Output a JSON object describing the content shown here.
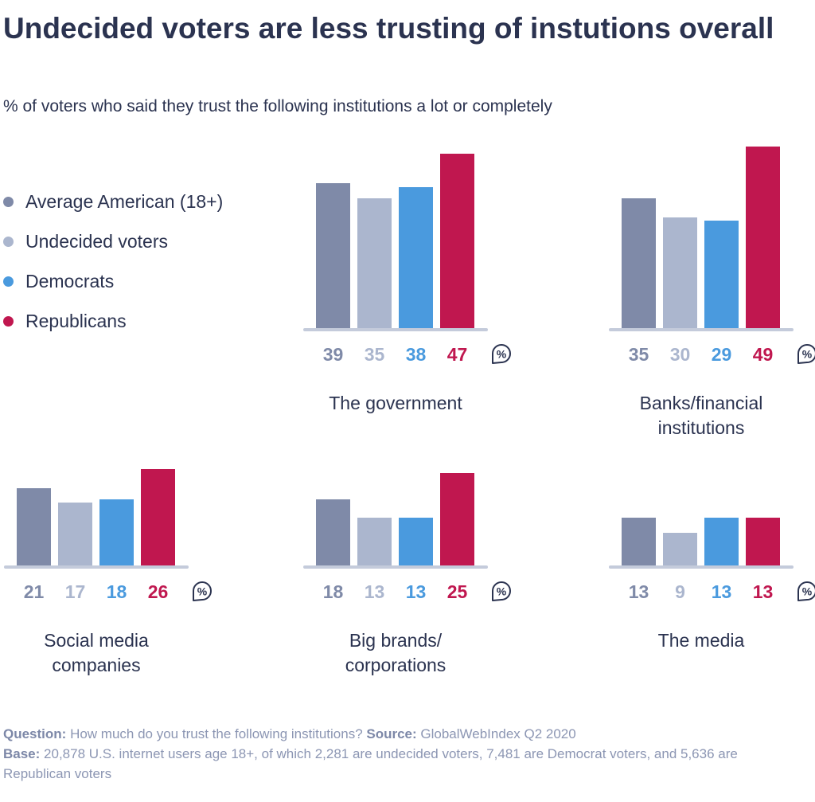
{
  "title": "Undecided voters are less trusting of instutions overall",
  "subtitle": "% of voters who said they trust the following institutions a lot or completely",
  "colors": {
    "Average American (18+)": "#7f8aa8",
    "Undecided voters": "#abb6ce",
    "Democrats": "#4a9ade",
    "Republicans": "#c0174f",
    "text": "#2b3350",
    "axis": "#c4cbdb"
  },
  "chart_data": {
    "type": "bar",
    "unit": "%",
    "legend_placement": "left",
    "grid": false,
    "ylim": [
      0,
      50
    ],
    "series_names": [
      "Average American (18+)",
      "Undecided voters",
      "Democrats",
      "Republicans"
    ],
    "categories": [
      "The government",
      "Banks/financial institutions",
      "Social media companies",
      "Big brands/ corporations",
      "The media"
    ],
    "series": [
      {
        "name": "Average American (18+)",
        "values": [
          39,
          35,
          21,
          18,
          13
        ]
      },
      {
        "name": "Undecided voters",
        "values": [
          35,
          30,
          17,
          13,
          9
        ]
      },
      {
        "name": "Democrats",
        "values": [
          38,
          29,
          18,
          13,
          13
        ]
      },
      {
        "name": "Republicans",
        "values": [
          47,
          49,
          26,
          25,
          13
        ]
      }
    ]
  },
  "footer": {
    "question_label": "Question:",
    "question": " How much do you trust the following institutions? ",
    "source_label": "Source:",
    "source": " GlobalWebIndex Q2 2020",
    "base_label": "Base:",
    "base": " 20,878 U.S. internet users age 18+, of which 2,281 are undecided voters, 7,481 are Democrat voters, and 5,636 are Republican voters"
  }
}
